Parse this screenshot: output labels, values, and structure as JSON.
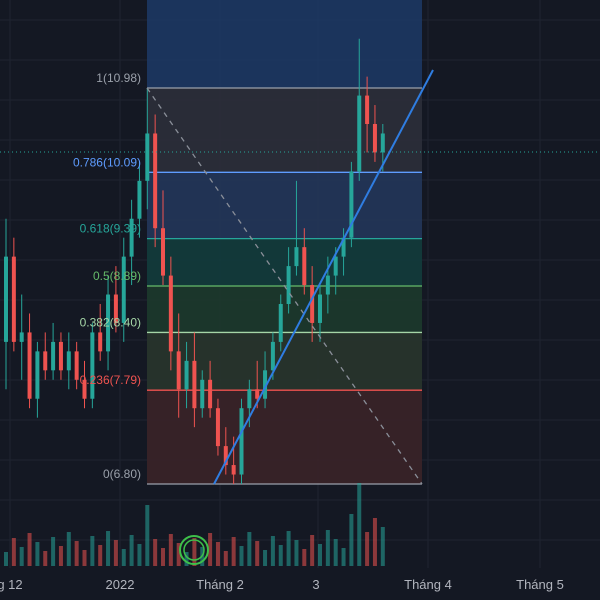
{
  "chart_data": {
    "type": "candlestick",
    "title": "",
    "x_axis_labels": [
      "g 12",
      "2022",
      "Tháng 2",
      "3",
      "Tháng 4",
      "Tháng 5"
    ],
    "fib_levels": [
      {
        "ratio": "1",
        "price": 10.98,
        "label": "1(10.98)",
        "color": "#9aa0aa"
      },
      {
        "ratio": "0.786",
        "price": 10.09,
        "label": "0.786(10.09)",
        "color": "#5e9cff"
      },
      {
        "ratio": "0.618",
        "price": 9.39,
        "label": "0.618(9.39)",
        "color": "#26a69a"
      },
      {
        "ratio": "0.5",
        "price": 8.89,
        "label": "0.5(8.89)",
        "color": "#66bb6a"
      },
      {
        "ratio": "0.382",
        "price": 8.4,
        "label": "0.382(8.40)",
        "color": "#a5d6a7"
      },
      {
        "ratio": "0.236",
        "price": 7.79,
        "label": "0.236(7.79)",
        "color": "#ef5350"
      },
      {
        "ratio": "0",
        "price": 6.8,
        "label": "0(6.80)",
        "color": "#9aa0aa"
      }
    ],
    "bullish_color": "#26a69a",
    "bearish_color": "#ef5350",
    "candles": [
      {
        "o": 8.3,
        "h": 9.6,
        "l": 7.8,
        "c": 9.2
      },
      {
        "o": 9.2,
        "h": 9.4,
        "l": 8.2,
        "c": 8.3
      },
      {
        "o": 8.3,
        "h": 8.8,
        "l": 7.9,
        "c": 8.4
      },
      {
        "o": 8.4,
        "h": 8.6,
        "l": 7.6,
        "c": 7.7
      },
      {
        "o": 7.7,
        "h": 8.3,
        "l": 7.5,
        "c": 8.2
      },
      {
        "o": 8.2,
        "h": 8.4,
        "l": 7.9,
        "c": 8.0
      },
      {
        "o": 8.0,
        "h": 8.5,
        "l": 7.9,
        "c": 8.3
      },
      {
        "o": 8.3,
        "h": 8.4,
        "l": 7.9,
        "c": 8.0
      },
      {
        "o": 8.0,
        "h": 8.4,
        "l": 7.8,
        "c": 8.2
      },
      {
        "o": 8.2,
        "h": 8.3,
        "l": 7.8,
        "c": 7.9
      },
      {
        "o": 7.9,
        "h": 8.1,
        "l": 7.6,
        "c": 7.7
      },
      {
        "o": 7.7,
        "h": 8.5,
        "l": 7.6,
        "c": 8.4
      },
      {
        "o": 8.4,
        "h": 8.7,
        "l": 8.1,
        "c": 8.2
      },
      {
        "o": 8.2,
        "h": 9.0,
        "l": 8.0,
        "c": 8.8
      },
      {
        "o": 8.8,
        "h": 9.1,
        "l": 8.4,
        "c": 8.5
      },
      {
        "o": 8.5,
        "h": 9.4,
        "l": 8.3,
        "c": 9.2
      },
      {
        "o": 9.2,
        "h": 9.8,
        "l": 8.9,
        "c": 9.6
      },
      {
        "o": 9.6,
        "h": 10.2,
        "l": 9.4,
        "c": 10.0
      },
      {
        "o": 10.0,
        "h": 10.98,
        "l": 9.7,
        "c": 10.5
      },
      {
        "o": 10.5,
        "h": 10.7,
        "l": 9.3,
        "c": 9.5
      },
      {
        "o": 9.5,
        "h": 9.9,
        "l": 8.9,
        "c": 9.0
      },
      {
        "o": 9.0,
        "h": 9.2,
        "l": 8.0,
        "c": 8.2
      },
      {
        "o": 8.2,
        "h": 8.6,
        "l": 7.5,
        "c": 7.8
      },
      {
        "o": 7.8,
        "h": 8.3,
        "l": 7.6,
        "c": 8.1
      },
      {
        "o": 8.1,
        "h": 8.4,
        "l": 7.4,
        "c": 7.6
      },
      {
        "o": 7.6,
        "h": 8.0,
        "l": 7.5,
        "c": 7.9
      },
      {
        "o": 7.9,
        "h": 8.1,
        "l": 7.5,
        "c": 7.6
      },
      {
        "o": 7.6,
        "h": 7.7,
        "l": 7.1,
        "c": 7.2
      },
      {
        "o": 7.2,
        "h": 7.4,
        "l": 6.9,
        "c": 7.0
      },
      {
        "o": 7.0,
        "h": 7.3,
        "l": 6.8,
        "c": 6.9
      },
      {
        "o": 6.9,
        "h": 7.7,
        "l": 6.8,
        "c": 7.6
      },
      {
        "o": 7.6,
        "h": 7.9,
        "l": 7.4,
        "c": 7.8
      },
      {
        "o": 7.8,
        "h": 8.1,
        "l": 7.6,
        "c": 7.7
      },
      {
        "o": 7.7,
        "h": 8.2,
        "l": 7.6,
        "c": 8.0
      },
      {
        "o": 8.0,
        "h": 8.4,
        "l": 7.9,
        "c": 8.3
      },
      {
        "o": 8.3,
        "h": 8.8,
        "l": 8.2,
        "c": 8.7
      },
      {
        "o": 8.7,
        "h": 9.3,
        "l": 8.6,
        "c": 9.1
      },
      {
        "o": 9.1,
        "h": 10.0,
        "l": 9.0,
        "c": 9.3
      },
      {
        "o": 9.3,
        "h": 9.5,
        "l": 8.8,
        "c": 8.9
      },
      {
        "o": 8.9,
        "h": 9.1,
        "l": 8.3,
        "c": 8.5
      },
      {
        "o": 8.5,
        "h": 8.9,
        "l": 8.3,
        "c": 8.8
      },
      {
        "o": 8.8,
        "h": 9.2,
        "l": 8.6,
        "c": 9.0
      },
      {
        "o": 9.0,
        "h": 9.3,
        "l": 8.8,
        "c": 9.2
      },
      {
        "o": 9.2,
        "h": 9.5,
        "l": 9.0,
        "c": 9.4
      },
      {
        "o": 9.4,
        "h": 10.2,
        "l": 9.3,
        "c": 10.1
      },
      {
        "o": 10.1,
        "h": 11.5,
        "l": 10.0,
        "c": 10.9
      },
      {
        "o": 10.9,
        "h": 11.1,
        "l": 10.3,
        "c": 10.6
      },
      {
        "o": 10.6,
        "h": 10.8,
        "l": 10.2,
        "c": 10.3
      },
      {
        "o": 10.3,
        "h": 10.6,
        "l": 10.1,
        "c": 10.5
      }
    ]
  }
}
